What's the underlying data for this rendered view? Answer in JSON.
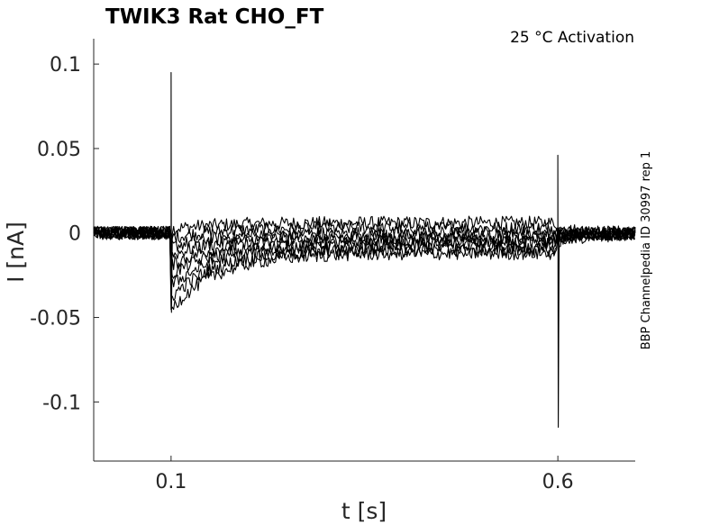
{
  "chart_data": {
    "type": "line",
    "title": "TWIK3  Rat  CHO_FT",
    "annotation": "25 °C  Activation",
    "side_label": "BBP Channelpedia ID 30997 rep 1",
    "xlabel": "t [s]",
    "ylabel": "I [nA]",
    "xlim": [
      0.0,
      0.7
    ],
    "ylim": [
      -0.135,
      0.115
    ],
    "xticks": [
      0.1,
      0.6
    ],
    "xtick_labels": [
      "0.1",
      "0.6"
    ],
    "yticks": [
      0.1,
      0.05,
      0,
      -0.05,
      -0.1
    ],
    "ytick_labels": [
      "0.1",
      "0.05",
      "0",
      "-0.05",
      "-0.1"
    ],
    "grid": false,
    "stimulus_on_s": 0.1,
    "stimulus_off_s": 0.6,
    "onset_spike_peak": 0.095,
    "onset_spike_trough": -0.047,
    "offset_spike_peak": 0.046,
    "offset_spike_trough": -0.115,
    "noise_amplitude": 0.004,
    "series": [
      {
        "steady": 0.006
      },
      {
        "steady": 0.003
      },
      {
        "steady": 0.0
      },
      {
        "steady": -0.002
      },
      {
        "steady": -0.004
      },
      {
        "steady": -0.006
      },
      {
        "steady": -0.008
      },
      {
        "steady": -0.01
      },
      {
        "steady": -0.012
      }
    ],
    "series_colors": [
      "#000000"
    ]
  }
}
